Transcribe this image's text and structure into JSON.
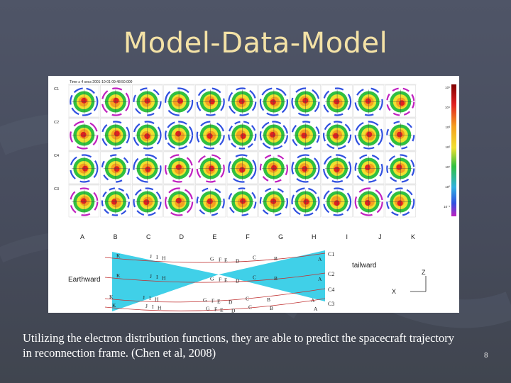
{
  "slide": {
    "title": "Model-Data-Model",
    "caption": "Utilizing the electron distribution functions, they are able to predict the spacecraft trajectory in reconnection frame. (Chen et al, 2008)",
    "slide_number": "8"
  },
  "figure": {
    "header_text": "Time ≥ 4 secs 2001-10-01 09:48:50.000",
    "spacecraft_rows": [
      "C1",
      "C2",
      "C4",
      "C3"
    ],
    "column_labels": [
      "A",
      "B",
      "C",
      "D",
      "E",
      "F",
      "G",
      "H",
      "I",
      "J",
      "K"
    ],
    "colorbar_ticks": [
      "10⁵",
      "10⁴",
      "10³",
      "10²",
      "10¹",
      "10⁰",
      "10⁻¹"
    ],
    "diagram": {
      "earthward_label": "Earthward",
      "tailward_label": "tailward",
      "axis_z": "Z",
      "axis_x": "X",
      "track_labels": [
        "C1",
        "C2",
        "C4",
        "C3"
      ],
      "letters_row1": [
        "K",
        "J",
        "I",
        "H",
        "G",
        "F",
        "E",
        "D",
        "C",
        "B",
        "A"
      ],
      "letters_row2": [
        "K",
        "J",
        "I",
        "H",
        "G",
        "F",
        "E",
        "D",
        "C",
        "B",
        "A"
      ],
      "letters_row3": [
        "K",
        "J",
        "I",
        "H",
        "G",
        "F",
        "E",
        "D",
        "C",
        "B",
        "A"
      ],
      "letters_row4": [
        "K",
        "J",
        "I",
        "H",
        "G",
        "F",
        "E",
        "D",
        "C",
        "B",
        "A"
      ]
    },
    "colors": {
      "sheet": "#40d0e8",
      "track": "#c03030",
      "red": "#e02020",
      "orange": "#f5a020",
      "yellow": "#f0e030",
      "green": "#30c040",
      "blue": "#3050e0",
      "magenta": "#c020c0"
    }
  }
}
